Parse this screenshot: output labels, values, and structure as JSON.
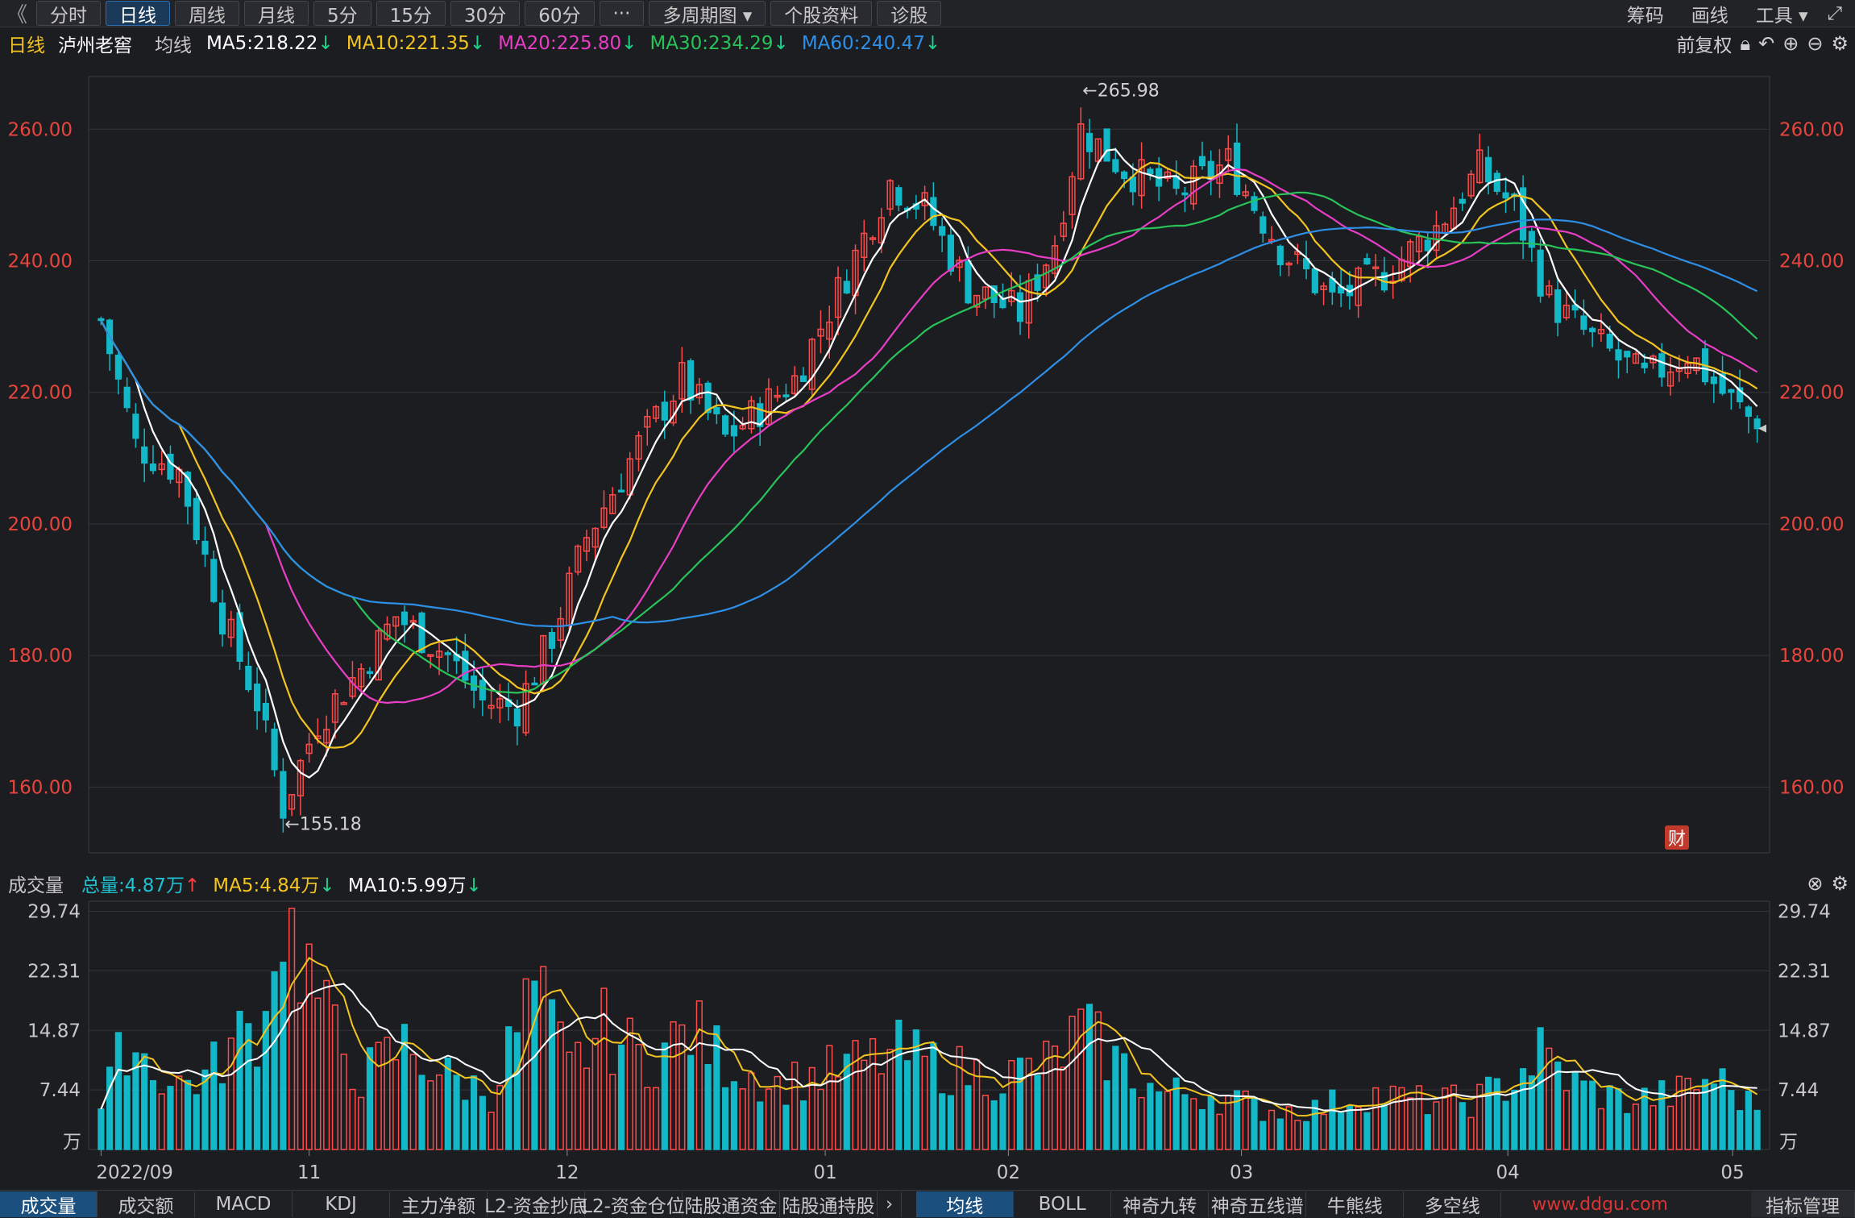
{
  "toolbar": {
    "back": "《",
    "periods": [
      "分时",
      "日线",
      "周线",
      "月线",
      "5分",
      "15分",
      "30分",
      "60分"
    ],
    "active_index": 1,
    "more": "···",
    "multi_period": "多周期图 ▾",
    "stock_info": "个股资料",
    "diagnose": "诊股",
    "right": [
      "筹码",
      "画线",
      "工具 ▾"
    ],
    "expand_icon": "⤢"
  },
  "ma_bar": {
    "period": "日线",
    "stock_name": "泸州老窖",
    "type": "均线",
    "ma5": "MA5:218.22",
    "ma10": "MA10:221.35",
    "ma20": "MA20:225.80",
    "ma30": "MA30:234.29",
    "ma60": "MA60:240.47",
    "adjust": "前复权",
    "arrow": "↓",
    "colors": {
      "ma5": "#ffffff",
      "ma10": "#f3c420",
      "ma20": "#e83ec6",
      "ma30": "#29c35a",
      "ma60": "#2e8fe6"
    }
  },
  "vol_bar": {
    "title": "成交量",
    "total": "总量:4.87万",
    "total_arrow": "↑",
    "ma5": "MA5:4.84万",
    "ma10": "MA10:5.99万",
    "arrow": "↓"
  },
  "price_axis": {
    "labels": [
      "260.00",
      "240.00",
      "220.00",
      "200.00",
      "180.00",
      "160.00"
    ],
    "values": [
      260,
      240,
      220,
      200,
      180,
      160
    ]
  },
  "vol_axis": {
    "labels": [
      "29.74",
      "22.31",
      "14.87",
      "7.44"
    ],
    "values": [
      29.74,
      22.31,
      14.87,
      7.44
    ],
    "unit": "万"
  },
  "date_axis": {
    "labels": [
      "2022/09",
      "11",
      "12",
      "01",
      "02",
      "03",
      "04",
      "05"
    ]
  },
  "annotations": {
    "high": "←265.98",
    "low": "←155.18",
    "fin_badge": "财"
  },
  "bottom_tabs_left": [
    "成交量",
    "成交额",
    "MACD",
    "KDJ",
    "主力净额",
    "L2-资金抄底",
    "L2-资金仓位",
    "陆股通资金",
    "陆股通持股"
  ],
  "bottom_tabs_right": [
    "均线",
    "BOLL",
    "神奇九转",
    "神奇五线谱",
    "牛熊线",
    "多空线"
  ],
  "bottom_manage": "指标管理",
  "watermark": "www.ddgu.com",
  "chart_data": [
    {
      "type": "candlestick",
      "title": "泸州老窖 日线",
      "ylim": [
        150,
        268
      ],
      "anchors": [
        {
          "i": 0,
          "c": 231
        },
        {
          "i": 4,
          "c": 212
        },
        {
          "i": 9,
          "c": 208
        },
        {
          "i": 14,
          "c": 186
        },
        {
          "i": 18,
          "c": 173
        },
        {
          "i": 21,
          "c": 157
        },
        {
          "i": 25,
          "c": 170
        },
        {
          "i": 30,
          "c": 178
        },
        {
          "i": 34,
          "c": 186
        },
        {
          "i": 40,
          "c": 180
        },
        {
          "i": 44,
          "c": 173
        },
        {
          "i": 48,
          "c": 172
        },
        {
          "i": 52,
          "c": 183
        },
        {
          "i": 56,
          "c": 198
        },
        {
          "i": 62,
          "c": 212
        },
        {
          "i": 67,
          "c": 222
        },
        {
          "i": 72,
          "c": 213
        },
        {
          "i": 80,
          "c": 222
        },
        {
          "i": 86,
          "c": 238
        },
        {
          "i": 91,
          "c": 252
        },
        {
          "i": 95,
          "c": 248
        },
        {
          "i": 100,
          "c": 236
        },
        {
          "i": 106,
          "c": 232
        },
        {
          "i": 110,
          "c": 243
        },
        {
          "i": 113,
          "c": 260
        },
        {
          "i": 118,
          "c": 254
        },
        {
          "i": 124,
          "c": 250
        },
        {
          "i": 130,
          "c": 255
        },
        {
          "i": 136,
          "c": 242
        },
        {
          "i": 142,
          "c": 234
        },
        {
          "i": 148,
          "c": 238
        },
        {
          "i": 154,
          "c": 245
        },
        {
          "i": 159,
          "c": 254
        },
        {
          "i": 163,
          "c": 248
        },
        {
          "i": 167,
          "c": 234
        },
        {
          "i": 172,
          "c": 228
        },
        {
          "i": 178,
          "c": 222
        },
        {
          "i": 183,
          "c": 226
        },
        {
          "i": 187,
          "c": 220
        },
        {
          "i": 191,
          "c": 215
        }
      ],
      "bars": 192,
      "high_value": 265.98,
      "low_value": 155.18,
      "last_close": 214.5
    },
    {
      "type": "bar",
      "title": "成交量",
      "ylim": [
        0,
        31
      ],
      "anchors": [
        {
          "i": 0,
          "v": 5
        },
        {
          "i": 3,
          "v": 14
        },
        {
          "i": 8,
          "v": 8
        },
        {
          "i": 12,
          "v": 9
        },
        {
          "i": 16,
          "v": 14
        },
        {
          "i": 19,
          "v": 16
        },
        {
          "i": 20,
          "v": 29.7
        },
        {
          "i": 23,
          "v": 25
        },
        {
          "i": 26,
          "v": 16
        },
        {
          "i": 30,
          "v": 9
        },
        {
          "i": 35,
          "v": 13
        },
        {
          "i": 40,
          "v": 9
        },
        {
          "i": 45,
          "v": 7
        },
        {
          "i": 50,
          "v": 20
        },
        {
          "i": 54,
          "v": 10
        },
        {
          "i": 58,
          "v": 15
        },
        {
          "i": 63,
          "v": 11
        },
        {
          "i": 68,
          "v": 15
        },
        {
          "i": 72,
          "v": 11
        },
        {
          "i": 78,
          "v": 8
        },
        {
          "i": 85,
          "v": 10
        },
        {
          "i": 92,
          "v": 12
        },
        {
          "i": 98,
          "v": 10
        },
        {
          "i": 104,
          "v": 9
        },
        {
          "i": 110,
          "v": 11
        },
        {
          "i": 113,
          "v": 15
        },
        {
          "i": 117,
          "v": 11
        },
        {
          "i": 122,
          "v": 7
        },
        {
          "i": 128,
          "v": 7
        },
        {
          "i": 134,
          "v": 5
        },
        {
          "i": 140,
          "v": 5
        },
        {
          "i": 146,
          "v": 7
        },
        {
          "i": 152,
          "v": 6
        },
        {
          "i": 158,
          "v": 6
        },
        {
          "i": 162,
          "v": 8
        },
        {
          "i": 166,
          "v": 12
        },
        {
          "i": 170,
          "v": 8
        },
        {
          "i": 176,
          "v": 6
        },
        {
          "i": 182,
          "v": 7
        },
        {
          "i": 186,
          "v": 9
        },
        {
          "i": 191,
          "v": 4.87
        }
      ]
    }
  ]
}
